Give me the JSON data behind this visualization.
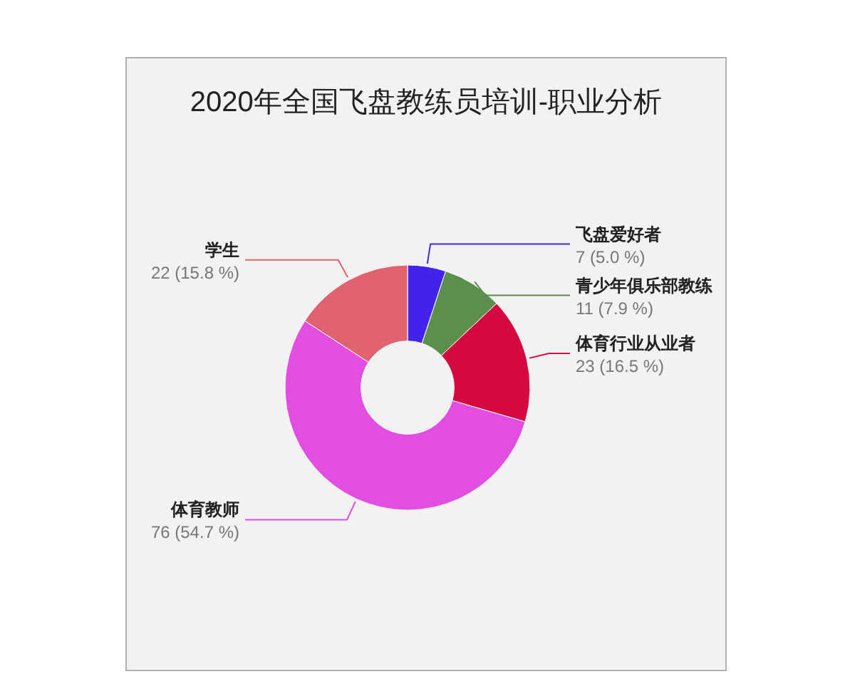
{
  "chart_data": {
    "type": "donut",
    "title": "2020年全国飞盘教练员培训-职业分析",
    "categories": [
      "飞盘爱好者",
      "青少年俱乐部教练",
      "体育行业从业者",
      "体育教师",
      "学生"
    ],
    "values": [
      7,
      11,
      23,
      76,
      22
    ],
    "colors": [
      "#4422ee",
      "#5a8f4e",
      "#d6093f",
      "#e24ee0",
      "#e0636f"
    ],
    "value_labels": [
      "7 (5.0 %)",
      "11 (7.9 %)",
      "23 (16.5 %)",
      "76 (54.7 %)",
      "22 (15.8 %)"
    ]
  }
}
